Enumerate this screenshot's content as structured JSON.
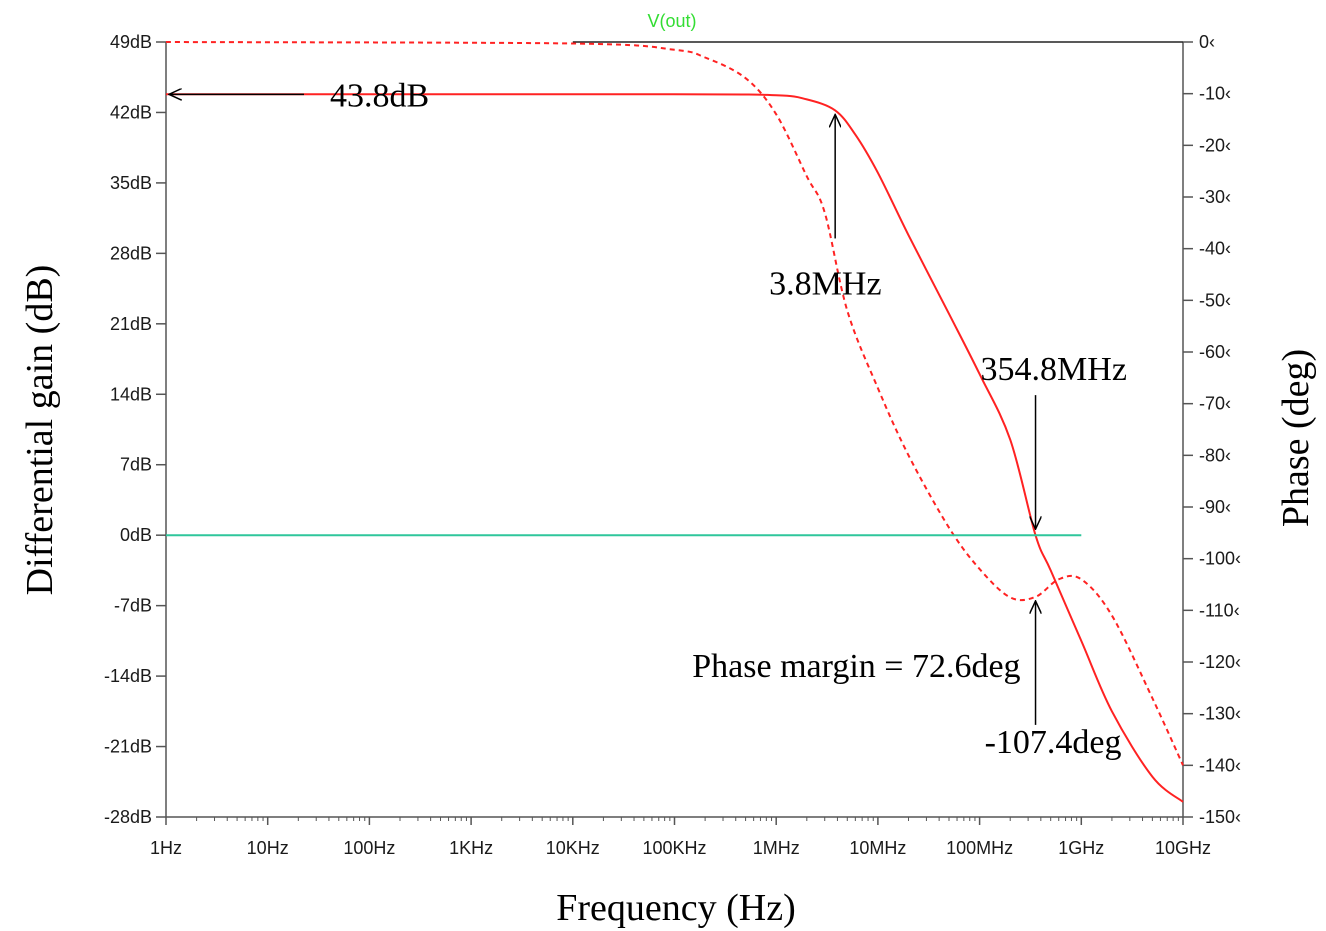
{
  "chart_data": {
    "type": "line",
    "title": "",
    "trace_name": "V(out)",
    "xlabel": "Frequency (Hz)",
    "ylabel_left": "Differential gain (dB)",
    "ylabel_right": "Phase (deg)",
    "x_scale": "log",
    "xlim": [
      1,
      10000000000
    ],
    "ylim_left": [
      -28,
      49
    ],
    "ylim_right": [
      -150,
      0
    ],
    "grid": false,
    "x_ticks": [
      {
        "value": 1,
        "label": "1Hz"
      },
      {
        "value": 10,
        "label": "10Hz"
      },
      {
        "value": 100,
        "label": "100Hz"
      },
      {
        "value": 1000,
        "label": "1KHz"
      },
      {
        "value": 10000,
        "label": "10KHz"
      },
      {
        "value": 100000,
        "label": "100KHz"
      },
      {
        "value": 1000000,
        "label": "1MHz"
      },
      {
        "value": 10000000,
        "label": "10MHz"
      },
      {
        "value": 100000000,
        "label": "100MHz"
      },
      {
        "value": 1000000000,
        "label": "1GHz"
      },
      {
        "value": 10000000000,
        "label": "10GHz"
      }
    ],
    "y_ticks_left": [
      {
        "value": 49,
        "label": "49dB"
      },
      {
        "value": 42,
        "label": "42dB"
      },
      {
        "value": 35,
        "label": "35dB"
      },
      {
        "value": 28,
        "label": "28dB"
      },
      {
        "value": 21,
        "label": "21dB"
      },
      {
        "value": 14,
        "label": "14dB"
      },
      {
        "value": 7,
        "label": "7dB"
      },
      {
        "value": 0,
        "label": "0dB"
      },
      {
        "value": -7,
        "label": "-7dB"
      },
      {
        "value": -14,
        "label": "-14dB"
      },
      {
        "value": -21,
        "label": "-21dB"
      },
      {
        "value": -28,
        "label": "-28dB"
      }
    ],
    "y_ticks_right": [
      {
        "value": 0,
        "label": "0‹"
      },
      {
        "value": -10,
        "label": "-10‹"
      },
      {
        "value": -20,
        "label": "-20‹"
      },
      {
        "value": -30,
        "label": "-30‹"
      },
      {
        "value": -40,
        "label": "-40‹"
      },
      {
        "value": -50,
        "label": "-50‹"
      },
      {
        "value": -60,
        "label": "-60‹"
      },
      {
        "value": -70,
        "label": "-70‹"
      },
      {
        "value": -80,
        "label": "-80‹"
      },
      {
        "value": -90,
        "label": "-90‹"
      },
      {
        "value": -100,
        "label": "-100‹"
      },
      {
        "value": -110,
        "label": "-110‹"
      },
      {
        "value": -120,
        "label": "-120‹"
      },
      {
        "value": -130,
        "label": "-130‹"
      },
      {
        "value": -140,
        "label": "-140‹"
      },
      {
        "value": -150,
        "label": "-150‹"
      }
    ],
    "series": [
      {
        "name": "V(out)",
        "quantity": "magnitude",
        "axis": "left",
        "style": "solid",
        "color": "#ff2222",
        "x": [
          1,
          100000,
          1000000,
          2000000,
          3800000,
          6000000,
          10000000,
          20000000,
          50000000,
          100000000,
          200000000,
          354800000,
          500000000,
          1000000000,
          2000000000,
          5000000000,
          10000000000
        ],
        "y": [
          43.8,
          43.8,
          43.7,
          43.3,
          42.2,
          39.8,
          36,
          29.8,
          22,
          16,
          9.5,
          0,
          -3.5,
          -10.5,
          -17.5,
          -24,
          -26.5
        ]
      },
      {
        "name": "V(out)",
        "quantity": "phase",
        "axis": "right",
        "style": "dashed",
        "color": "#ff2222",
        "x": [
          1,
          10000,
          100000,
          200000,
          500000,
          1000000,
          2000000,
          3000000,
          5000000,
          10000000,
          20000000,
          50000000,
          100000000,
          200000000,
          354800000,
          600000000,
          1000000000,
          2000000000,
          5000000000,
          10000000000
        ],
        "y": [
          0,
          -0.3,
          -1.5,
          -3,
          -7,
          -14,
          -26,
          -33,
          -52,
          -67,
          -80,
          -94,
          -102,
          -107.5,
          -107.4,
          -104,
          -104,
          -111,
          -127,
          -140
        ]
      },
      {
        "name": "0 dB reference",
        "axis": "left",
        "style": "solid",
        "color": "#2fc69b",
        "x": [
          1,
          1000000000
        ],
        "y": [
          0,
          0
        ]
      }
    ],
    "annotations": [
      {
        "text": "43.8dB",
        "x": 1,
        "y": 43.8,
        "axis": "left"
      },
      {
        "text": "3.8MHz",
        "x": 3800000,
        "y": 42.2,
        "axis": "left"
      },
      {
        "text": "354.8MHz",
        "x": 354800000,
        "y": 0,
        "axis": "left"
      },
      {
        "text": "Phase margin = 72.6deg",
        "x": 354800000,
        "y": -107.4,
        "axis": "right"
      },
      {
        "text": "-107.4deg",
        "x": 354800000,
        "y": -107.4,
        "axis": "right"
      }
    ]
  },
  "colors": {
    "trace": "#ff2222",
    "reference": "#2fc69b",
    "trace_title": "#33dd33",
    "axis": "#555555",
    "annotation": "#000000"
  }
}
